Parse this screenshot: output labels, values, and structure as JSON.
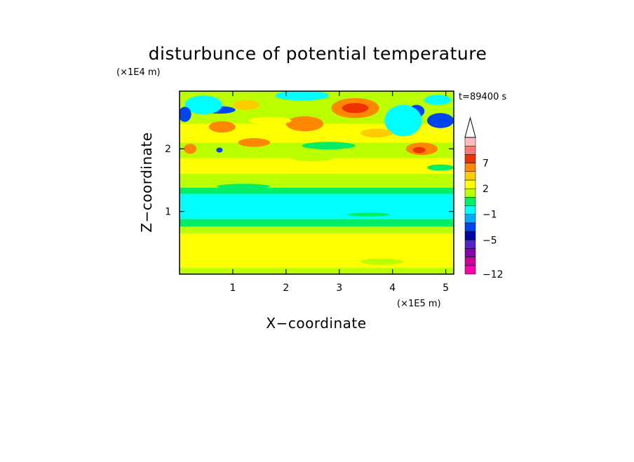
{
  "chart_data": {
    "type": "heatmap",
    "title": "disturbunce of potential temperature",
    "xlabel": "X−coordinate",
    "ylabel": "Z−coordinate",
    "x_unit": "(×1E5 m)",
    "y_unit": "(×1E4 m)",
    "time_label": "t=89400 s",
    "xlim": [
      0,
      5.15
    ],
    "ylim": [
      0,
      2.92
    ],
    "x_ticks": [
      "1",
      "2",
      "3",
      "4",
      "5"
    ],
    "y_ticks": [
      "1",
      "2"
    ],
    "colorbar": {
      "labels": [
        "7",
        "2",
        "−1",
        "−5",
        "−12"
      ],
      "levels_bottom_to_top": [
        -12,
        -11,
        -9,
        -7,
        -5,
        -3,
        -2,
        -1,
        0,
        1,
        2,
        3,
        5,
        7,
        9,
        11
      ],
      "colors_bottom_to_top": [
        "#ff00aa",
        "#cc0099",
        "#8800aa",
        "#5522cc",
        "#0000aa",
        "#0044ee",
        "#00aaff",
        "#00ffff",
        "#00ee66",
        "#bbff00",
        "#ffff00",
        "#ffcc00",
        "#ff8800",
        "#ee3300",
        "#ff7777",
        "#ffbbbb"
      ],
      "extend_top": true
    },
    "bands": [
      {
        "z": [
          0.0,
          0.1
        ],
        "class": 0
      },
      {
        "z": [
          0.1,
          0.22
        ],
        "class": 1
      },
      {
        "z": [
          0.22,
          0.65
        ],
        "class": 1
      },
      {
        "z": [
          0.65,
          0.76
        ],
        "class": 0
      },
      {
        "z": [
          0.76,
          0.88
        ],
        "class": -1
      },
      {
        "z": [
          0.88,
          1.28
        ],
        "class": -2
      },
      {
        "z": [
          1.28,
          1.38
        ],
        "class": -1
      },
      {
        "z": [
          1.38,
          1.6
        ],
        "class": 0
      },
      {
        "z": [
          1.6,
          1.85
        ],
        "class": 1
      },
      {
        "z": [
          1.85,
          2.1
        ],
        "class": 0
      },
      {
        "z": [
          2.1,
          2.4
        ],
        "class": 1
      },
      {
        "z": [
          2.4,
          2.92
        ],
        "class": 0
      }
    ],
    "features": [
      {
        "x": 0.75,
        "z": 2.62,
        "rx": 0.3,
        "rz": 0.06,
        "class": -4
      },
      {
        "x": 0.45,
        "z": 2.7,
        "rx": 0.35,
        "rz": 0.15,
        "class": -2
      },
      {
        "x": 0.1,
        "z": 2.55,
        "rx": 0.12,
        "rz": 0.12,
        "class": -4
      },
      {
        "x": 3.3,
        "z": 2.65,
        "rx": 0.45,
        "rz": 0.16,
        "class": 3
      },
      {
        "x": 3.3,
        "z": 2.65,
        "rx": 0.25,
        "rz": 0.08,
        "class": 4
      },
      {
        "x": 2.35,
        "z": 2.4,
        "rx": 0.35,
        "rz": 0.12,
        "class": 3
      },
      {
        "x": 0.8,
        "z": 2.35,
        "rx": 0.25,
        "rz": 0.09,
        "class": 3
      },
      {
        "x": 1.4,
        "z": 2.1,
        "rx": 0.3,
        "rz": 0.07,
        "class": 3
      },
      {
        "x": 4.55,
        "z": 2.0,
        "rx": 0.3,
        "rz": 0.1,
        "class": 3
      },
      {
        "x": 4.5,
        "z": 1.98,
        "rx": 0.12,
        "rz": 0.05,
        "class": 4
      },
      {
        "x": 4.9,
        "z": 2.45,
        "rx": 0.25,
        "rz": 0.12,
        "class": -4
      },
      {
        "x": 4.45,
        "z": 2.6,
        "rx": 0.15,
        "rz": 0.1,
        "class": -4
      },
      {
        "x": 4.2,
        "z": 2.45,
        "rx": 0.35,
        "rz": 0.25,
        "class": -2
      },
      {
        "x": 2.3,
        "z": 2.85,
        "rx": 0.5,
        "rz": 0.08,
        "class": -2
      },
      {
        "x": 0.75,
        "z": 1.98,
        "rx": 0.06,
        "rz": 0.04,
        "class": -4
      },
      {
        "x": 4.85,
        "z": 2.78,
        "rx": 0.25,
        "rz": 0.08,
        "class": -2
      },
      {
        "x": 0.2,
        "z": 2.0,
        "rx": 0.12,
        "rz": 0.08,
        "class": 3
      },
      {
        "x": 3.7,
        "z": 2.25,
        "rx": 0.3,
        "rz": 0.07,
        "class": 2
      },
      {
        "x": 1.7,
        "z": 2.45,
        "rx": 0.4,
        "rz": 0.06,
        "class": 1
      },
      {
        "x": 2.8,
        "z": 2.05,
        "rx": 0.5,
        "rz": 0.06,
        "class": -1
      },
      {
        "x": 1.25,
        "z": 2.7,
        "rx": 0.25,
        "rz": 0.08,
        "class": 2
      },
      {
        "x": 2.5,
        "z": 1.85,
        "rx": 0.4,
        "rz": 0.05,
        "class": 0
      },
      {
        "x": 4.9,
        "z": 1.7,
        "rx": 0.25,
        "rz": 0.05,
        "class": -1
      },
      {
        "x": 3.55,
        "z": 0.95,
        "rx": 0.4,
        "rz": 0.03,
        "class": -1
      },
      {
        "x": 1.2,
        "z": 1.4,
        "rx": 0.5,
        "rz": 0.04,
        "class": -1
      },
      {
        "x": 3.8,
        "z": 0.2,
        "rx": 0.4,
        "rz": 0.05,
        "class": 0
      }
    ]
  }
}
